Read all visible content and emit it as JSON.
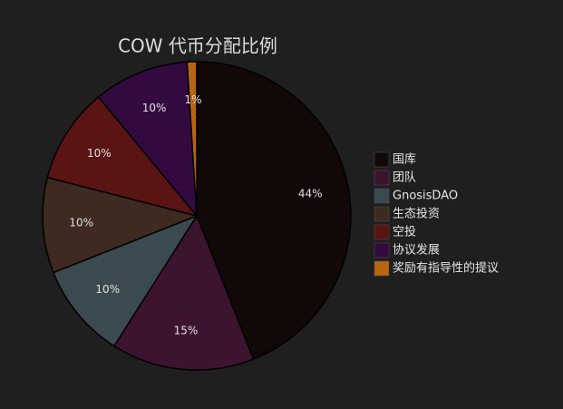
{
  "chart_data": {
    "type": "pie",
    "title": "COW 代币分配比例",
    "categories": [
      "国库",
      "团队",
      "GnosisDAO",
      "生态投资",
      "空投",
      "协议发展",
      "奖励有指导性的提议"
    ],
    "values": [
      44,
      15,
      10,
      10,
      10,
      10,
      1
    ],
    "value_labels": [
      "44%",
      "15%",
      "10%",
      "10%",
      "10%",
      "10%",
      "1%"
    ],
    "colors": [
      "#120808",
      "#3d1430",
      "#3a4a50",
      "#3e2a20",
      "#5a1414",
      "#320a40",
      "#b06010"
    ],
    "legend": "right"
  }
}
